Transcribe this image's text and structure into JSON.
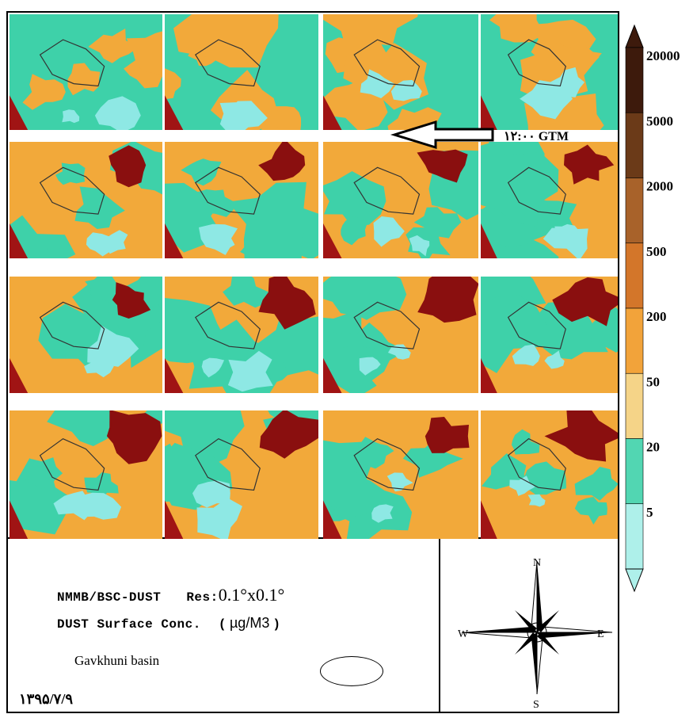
{
  "legend": {
    "levels": [
      {
        "value": "20000",
        "color": "#3d1a0c"
      },
      {
        "value": "5000",
        "color": "#6b3a18"
      },
      {
        "value": "2000",
        "color": "#a8622a"
      },
      {
        "value": "500",
        "color": "#d3762a"
      },
      {
        "value": "200",
        "color": "#f2a33a"
      },
      {
        "value": "50",
        "color": "#f5d488"
      },
      {
        "value": "20",
        "color": "#52d6b2"
      },
      {
        "value": "5",
        "color": "#aef0ea"
      }
    ]
  },
  "colors": {
    "deep_red": "#8a0f0f",
    "dark_red": "#a01414",
    "orange": "#f2a93a",
    "teal": "#3ed1a9",
    "cyan": "#8ee8e4",
    "pale": "#ffffff"
  },
  "arrow_annotation": {
    "label": "۱۲:۰۰ GTM"
  },
  "info": {
    "model_name": "NMMB/BSC-DUST",
    "res_label": "Res:",
    "res_value": "0.1°x0.1°",
    "variable": "DUST Surface Conc.",
    "unit_open": "(",
    "unit": "µg/M3",
    "unit_close": ")",
    "basin_label": "Gavkhuni basin",
    "date": "۱۳۹۵/۷/۹"
  },
  "compass": {
    "n": "N",
    "s": "S",
    "e": "E",
    "w": "W",
    "icon": "compass-rose-icon"
  }
}
